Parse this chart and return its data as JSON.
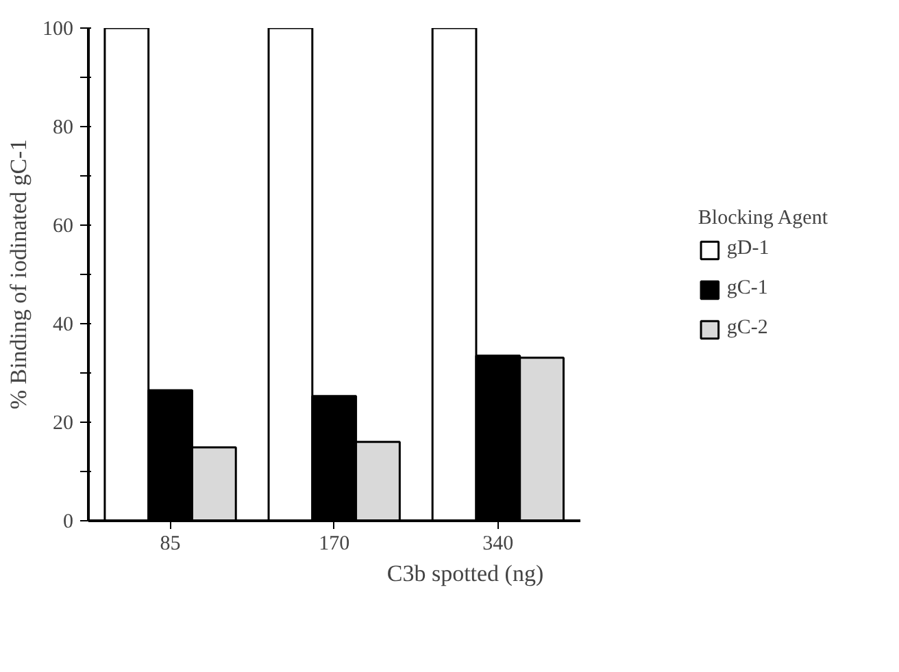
{
  "chart_data": {
    "type": "bar",
    "xlabel": "C3b spotted (ng)",
    "ylabel": "% Binding of iodinated gC-1",
    "legend_title": "Blocking Agent",
    "legend": "right",
    "categories": [
      "85",
      "170",
      "340"
    ],
    "series": [
      {
        "name": "gD-1",
        "color": "#ffffff",
        "values": [
          100,
          100,
          100
        ]
      },
      {
        "name": "gC-1",
        "color": "#000000",
        "values": [
          26.5,
          25.3,
          33.5
        ]
      },
      {
        "name": "gC-2",
        "color": "#d9d9d9",
        "values": [
          14.9,
          16.0,
          33.1
        ]
      }
    ],
    "ylim": [
      0,
      100
    ],
    "yticks": [
      0,
      {
        "value": 10,
        "label": null
      },
      20,
      {
        "value": 30,
        "label": null
      },
      40,
      {
        "value": 50,
        "label": null
      },
      60,
      {
        "value": 70,
        "label": null
      },
      80,
      {
        "value": 90,
        "label": null
      },
      100
    ],
    "grid": false
  }
}
